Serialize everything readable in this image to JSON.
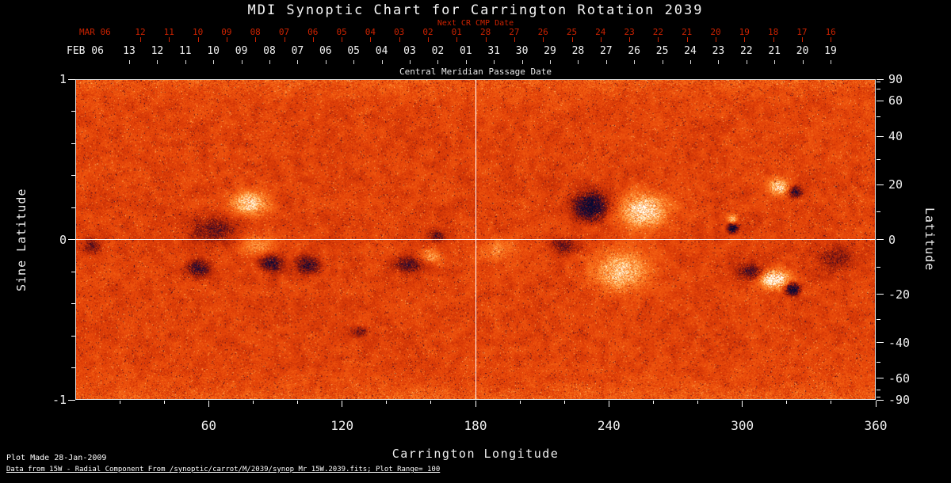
{
  "title": "MDI Synoptic Chart for Carrington Rotation 2039",
  "top_axes": {
    "next_cr_label": "Next CR CMP Date",
    "next_cr_month": "MAR 06",
    "next_cr_dates": [
      "12",
      "11",
      "10",
      "09",
      "08",
      "07",
      "06",
      "05",
      "04",
      "03",
      "02",
      "01",
      "28",
      "27",
      "26",
      "25",
      "24",
      "23",
      "22",
      "21",
      "20",
      "19",
      "18",
      "17",
      "16"
    ],
    "cmp_month": "FEB 06",
    "cmp_dates": [
      "13",
      "12",
      "11",
      "10",
      "09",
      "08",
      "07",
      "06",
      "05",
      "04",
      "03",
      "02",
      "01",
      "31",
      "30",
      "29",
      "28",
      "27",
      "26",
      "25",
      "24",
      "23",
      "22",
      "21",
      "20",
      "19"
    ],
    "cmp_axis_label": "Central Meridian Passage Date"
  },
  "axes": {
    "left": {
      "label": "Sine Latitude",
      "ticks": [
        "1",
        "0",
        "-1"
      ]
    },
    "right": {
      "label": "Latitude",
      "ticks": [
        90,
        60,
        40,
        20,
        0,
        -20,
        -40,
        -60,
        -90
      ]
    },
    "bottom": {
      "label": "Carrington Longitude",
      "ticks": [
        60,
        120,
        180,
        240,
        300,
        360
      ]
    }
  },
  "footer": {
    "line1": "Plot Made 28-Jan-2009",
    "line2": "Data from 15W - Radial Component From /synoptic/carrot/M/2039/synop_Mr_15W.2039.fits; Plot Range= 100"
  },
  "colors": {
    "background": "#000000",
    "red_axis": "#cc2200",
    "frame": "#ffffff",
    "base_field": "#e44208",
    "negative_field": "#08083a",
    "positive_field": "#ffffff"
  },
  "chart_data": {
    "type": "heatmap",
    "title": "MDI Synoptic Chart for Carrington Rotation 2039",
    "xlabel": "Carrington Longitude",
    "ylabel": "Sine Latitude",
    "ylabel_right": "Latitude",
    "xlim": [
      0,
      360
    ],
    "ylim": [
      -1,
      1
    ],
    "plot_range": 100,
    "colormap": "negative field = dark blue/black, zero = red-orange, positive field = yellow-white",
    "gridlines": {
      "horizontal_at_sine_latitude": 0,
      "vertical_at_longitude": 180
    },
    "active_regions": [
      {
        "lon": 78,
        "sine_lat": 0.23,
        "sigma_lon": 8,
        "sigma_sine_lat": 0.07,
        "strength": 1.0
      },
      {
        "lon": 62,
        "sine_lat": 0.06,
        "sigma_lon": 10,
        "sigma_sine_lat": 0.08,
        "strength": -0.55
      },
      {
        "lon": 55,
        "sine_lat": -0.18,
        "sigma_lon": 5,
        "sigma_sine_lat": 0.05,
        "strength": -0.85
      },
      {
        "lon": 88,
        "sine_lat": -0.15,
        "sigma_lon": 5,
        "sigma_sine_lat": 0.05,
        "strength": -0.95
      },
      {
        "lon": 104,
        "sine_lat": -0.16,
        "sigma_lon": 5,
        "sigma_sine_lat": 0.05,
        "strength": -0.9
      },
      {
        "lon": 82,
        "sine_lat": -0.04,
        "sigma_lon": 8,
        "sigma_sine_lat": 0.06,
        "strength": 0.45
      },
      {
        "lon": 150,
        "sine_lat": -0.16,
        "sigma_lon": 7,
        "sigma_sine_lat": 0.05,
        "strength": -0.6
      },
      {
        "lon": 160,
        "sine_lat": -0.11,
        "sigma_lon": 5,
        "sigma_sine_lat": 0.04,
        "strength": 0.55
      },
      {
        "lon": 163,
        "sine_lat": 0.02,
        "sigma_lon": 4,
        "sigma_sine_lat": 0.04,
        "strength": -0.5
      },
      {
        "lon": 232,
        "sine_lat": 0.21,
        "sigma_lon": 7,
        "sigma_sine_lat": 0.08,
        "strength": -1.35
      },
      {
        "lon": 256,
        "sine_lat": 0.18,
        "sigma_lon": 10,
        "sigma_sine_lat": 0.1,
        "strength": 1.15
      },
      {
        "lon": 246,
        "sine_lat": -0.2,
        "sigma_lon": 12,
        "sigma_sine_lat": 0.12,
        "strength": 0.85
      },
      {
        "lon": 220,
        "sine_lat": -0.04,
        "sigma_lon": 6,
        "sigma_sine_lat": 0.05,
        "strength": -0.5
      },
      {
        "lon": 296,
        "sine_lat": 0.07,
        "sigma_lon": 2.2,
        "sigma_sine_lat": 0.028,
        "strength": -1.4
      },
      {
        "lon": 296,
        "sine_lat": 0.13,
        "sigma_lon": 2.2,
        "sigma_sine_lat": 0.025,
        "strength": 0.7
      },
      {
        "lon": 317,
        "sine_lat": 0.33,
        "sigma_lon": 5,
        "sigma_sine_lat": 0.05,
        "strength": 0.95
      },
      {
        "lon": 324,
        "sine_lat": 0.3,
        "sigma_lon": 3,
        "sigma_sine_lat": 0.035,
        "strength": -0.85
      },
      {
        "lon": 315,
        "sine_lat": -0.25,
        "sigma_lon": 6,
        "sigma_sine_lat": 0.055,
        "strength": 1.45
      },
      {
        "lon": 323,
        "sine_lat": -0.31,
        "sigma_lon": 3,
        "sigma_sine_lat": 0.035,
        "strength": -1.5
      },
      {
        "lon": 304,
        "sine_lat": -0.2,
        "sigma_lon": 6,
        "sigma_sine_lat": 0.05,
        "strength": -0.65
      },
      {
        "lon": 342,
        "sine_lat": -0.12,
        "sigma_lon": 9,
        "sigma_sine_lat": 0.09,
        "strength": -0.4
      },
      {
        "lon": 190,
        "sine_lat": -0.07,
        "sigma_lon": 9,
        "sigma_sine_lat": 0.07,
        "strength": 0.4
      },
      {
        "lon": 128,
        "sine_lat": -0.58,
        "sigma_lon": 3,
        "sigma_sine_lat": 0.03,
        "strength": -0.6
      },
      {
        "lon": 7,
        "sine_lat": -0.04,
        "sigma_lon": 4,
        "sigma_sine_lat": 0.05,
        "strength": -0.5
      }
    ]
  }
}
